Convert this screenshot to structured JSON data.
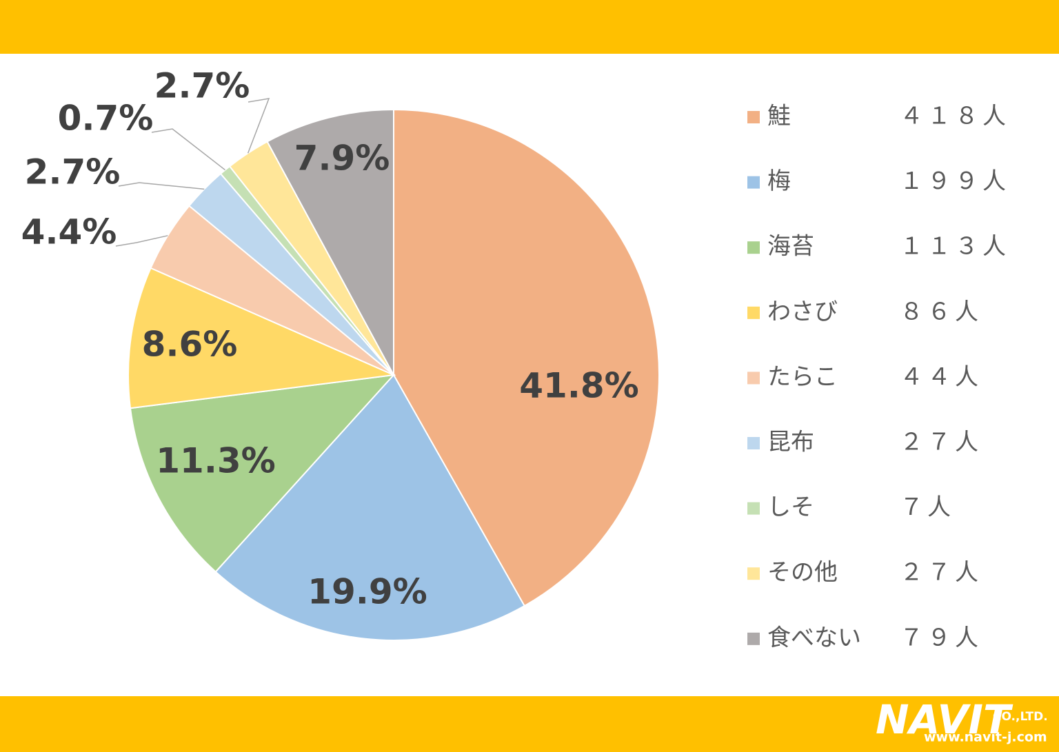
{
  "chart_data": {
    "type": "pie",
    "categories": [
      "鮭",
      "梅",
      "海苔",
      "わさび",
      "たらこ",
      "昆布",
      "しそ",
      "その他",
      "食べない"
    ],
    "values": [
      41.8,
      19.9,
      11.3,
      8.6,
      4.4,
      2.7,
      0.7,
      2.7,
      7.9
    ],
    "value_labels": [
      "41.8%",
      "19.9%",
      "11.3%",
      "8.6%",
      "4.4%",
      "2.7%",
      "0.7%",
      "2.7%",
      "7.9%"
    ],
    "counts": [
      418,
      199,
      113,
      86,
      44,
      27,
      7,
      27,
      79
    ],
    "count_labels": [
      "４１８人",
      "１９９人",
      "１１３人",
      "８６人",
      "４４人",
      "２７人",
      "７人",
      "２７人",
      "７９人"
    ],
    "colors": [
      "#f2b084",
      "#9dc3e6",
      "#a9d18e",
      "#ffd966",
      "#f8cbad",
      "#bdd7ee",
      "#c5e0b4",
      "#ffe699",
      "#aeaaaa"
    ],
    "legend": "right"
  },
  "footer": {
    "logo": "NAVIT",
    "company": "CO.,LTD.",
    "url": "www.navit-j.com"
  }
}
